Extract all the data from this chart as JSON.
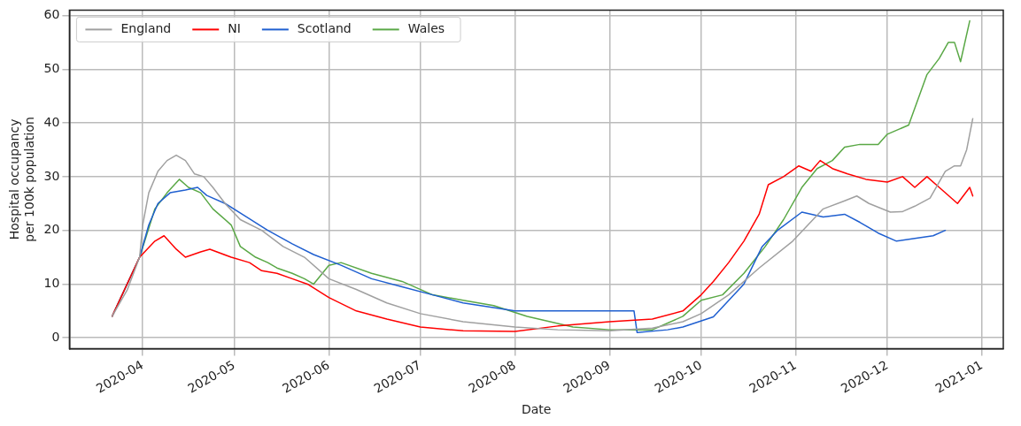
{
  "chart_data": {
    "type": "line",
    "xlabel": "Date",
    "ylabel": "Hospital occupancy\nper 100k population",
    "xlim": [
      "2020-03-08",
      "2021-01-08"
    ],
    "xticks": [
      {
        "value": "2020-04-01",
        "label": "2020-04"
      },
      {
        "value": "2020-05-01",
        "label": "2020-05"
      },
      {
        "value": "2020-06-01",
        "label": "2020-06"
      },
      {
        "value": "2020-07-01",
        "label": "2020-07"
      },
      {
        "value": "2020-08-01",
        "label": "2020-08"
      },
      {
        "value": "2020-09-01",
        "label": "2020-09"
      },
      {
        "value": "2020-10-01",
        "label": "2020-10"
      },
      {
        "value": "2020-11-01",
        "label": "2020-11"
      },
      {
        "value": "2020-12-01",
        "label": "2020-12"
      },
      {
        "value": "2021-01-01",
        "label": "2021-01"
      }
    ],
    "ylim": [
      -2,
      61
    ],
    "yticks": [
      0,
      10,
      20,
      30,
      40,
      50,
      60
    ],
    "grid": true,
    "legend": "top left",
    "marker": "none",
    "line_style": "solid",
    "series": [
      {
        "name": "England",
        "color": "#a0a0a0",
        "x": [
          "2020-03-22",
          "2020-03-27",
          "2020-03-31",
          "2020-04-01",
          "2020-04-03",
          "2020-04-06",
          "2020-04-09",
          "2020-04-12",
          "2020-04-15",
          "2020-04-18",
          "2020-04-21",
          "2020-04-24",
          "2020-04-28",
          "2020-05-03",
          "2020-05-10",
          "2020-05-17",
          "2020-05-24",
          "2020-06-01",
          "2020-06-10",
          "2020-06-20",
          "2020-07-01",
          "2020-07-15",
          "2020-08-01",
          "2020-08-15",
          "2020-09-01",
          "2020-09-15",
          "2020-09-25",
          "2020-10-01",
          "2020-10-10",
          "2020-10-20",
          "2020-10-31",
          "2020-11-05",
          "2020-11-10",
          "2020-11-17",
          "2020-11-21",
          "2020-11-25",
          "2020-12-02",
          "2020-12-06",
          "2020-12-10",
          "2020-12-15",
          "2020-12-20",
          "2020-12-23",
          "2020-12-25",
          "2020-12-27",
          "2020-12-29"
        ],
        "values": [
          4,
          9,
          15,
          21,
          27,
          31,
          33,
          34,
          33,
          30.5,
          30,
          28,
          25,
          22,
          20,
          17,
          15,
          11,
          9,
          6.5,
          4.5,
          3,
          2,
          1.5,
          1.3,
          1.8,
          3,
          4.5,
          8,
          13,
          18,
          21,
          24,
          25.5,
          26.4,
          25,
          23.4,
          23.5,
          24.5,
          26,
          31,
          32,
          32,
          35,
          40.8
        ]
      },
      {
        "name": "NI",
        "color": "#ff0000",
        "x": [
          "2020-03-22",
          "2020-03-31",
          "2020-04-05",
          "2020-04-08",
          "2020-04-12",
          "2020-04-15",
          "2020-04-20",
          "2020-04-23",
          "2020-04-30",
          "2020-05-06",
          "2020-05-10",
          "2020-05-15",
          "2020-05-20",
          "2020-05-25",
          "2020-06-01",
          "2020-06-10",
          "2020-06-20",
          "2020-07-01",
          "2020-07-15",
          "2020-08-01",
          "2020-08-15",
          "2020-09-01",
          "2020-09-15",
          "2020-09-25",
          "2020-10-01",
          "2020-10-05",
          "2020-10-10",
          "2020-10-15",
          "2020-10-20",
          "2020-10-23",
          "2020-10-28",
          "2020-11-02",
          "2020-11-06",
          "2020-11-09",
          "2020-11-13",
          "2020-11-18",
          "2020-11-24",
          "2020-12-01",
          "2020-12-06",
          "2020-12-10",
          "2020-12-14",
          "2020-12-18",
          "2020-12-24",
          "2020-12-28",
          "2020-12-29"
        ],
        "values": [
          4,
          15,
          18,
          19,
          16.5,
          15,
          16,
          16.5,
          15,
          14,
          12.5,
          12,
          11,
          10,
          7.5,
          5,
          3.5,
          2,
          1.3,
          1.2,
          2.2,
          3,
          3.5,
          5,
          8,
          10.5,
          14,
          18,
          23,
          28.5,
          30,
          32,
          31,
          33,
          31.5,
          30.5,
          29.5,
          29,
          30,
          28,
          30,
          28,
          25,
          28,
          26.4
        ]
      },
      {
        "name": "Scotland",
        "color": "#1f5fd0",
        "x": [
          "2020-03-22",
          "2020-03-31",
          "2020-04-03",
          "2020-04-06",
          "2020-04-10",
          "2020-04-15",
          "2020-04-19",
          "2020-04-22",
          "2020-04-28",
          "2020-05-05",
          "2020-05-12",
          "2020-05-20",
          "2020-05-27",
          "2020-06-05",
          "2020-06-15",
          "2020-06-25",
          "2020-07-05",
          "2020-07-15",
          "2020-08-01",
          "2020-08-15",
          "2020-09-01",
          "2020-09-09",
          "2020-09-10",
          "2020-09-20",
          "2020-09-25",
          "2020-10-05",
          "2020-10-15",
          "2020-10-21",
          "2020-10-26",
          "2020-11-03",
          "2020-11-10",
          "2020-11-17",
          "2020-11-22",
          "2020-11-28",
          "2020-12-04",
          "2020-12-10",
          "2020-12-16",
          "2020-12-20"
        ],
        "values": [
          4,
          15,
          21,
          25,
          27,
          27.5,
          28,
          26.5,
          25,
          22.5,
          20,
          17.5,
          15.5,
          13.5,
          11,
          9.5,
          8,
          6.5,
          5,
          5,
          5,
          5,
          1,
          1.5,
          2,
          3.9,
          10,
          17,
          20,
          23.4,
          22.5,
          23,
          21.5,
          19.5,
          18,
          18.5,
          19,
          20
        ]
      },
      {
        "name": "Wales",
        "color": "#5aa846",
        "x": [
          "2020-03-22",
          "2020-03-31",
          "2020-04-05",
          "2020-04-09",
          "2020-04-13",
          "2020-04-16",
          "2020-04-20",
          "2020-04-24",
          "2020-04-30",
          "2020-05-03",
          "2020-05-08",
          "2020-05-12",
          "2020-05-15",
          "2020-05-20",
          "2020-05-24",
          "2020-05-27",
          "2020-06-01",
          "2020-06-05",
          "2020-06-15",
          "2020-06-25",
          "2020-07-05",
          "2020-07-15",
          "2020-07-25",
          "2020-08-05",
          "2020-08-20",
          "2020-09-01",
          "2020-09-15",
          "2020-09-25",
          "2020-10-01",
          "2020-10-08",
          "2020-10-15",
          "2020-10-22",
          "2020-10-28",
          "2020-11-03",
          "2020-11-08",
          "2020-11-13",
          "2020-11-17",
          "2020-11-22",
          "2020-11-28",
          "2020-12-01",
          "2020-12-08",
          "2020-12-14",
          "2020-12-18",
          "2020-12-21",
          "2020-12-23",
          "2020-12-25",
          "2020-12-28"
        ],
        "values": [
          4,
          15,
          24,
          27,
          29.5,
          28,
          27,
          24,
          21,
          17,
          15,
          14,
          13,
          12,
          11,
          10,
          13.5,
          14,
          12,
          10.5,
          8,
          7,
          6,
          4,
          2,
          1.5,
          1.5,
          4,
          7,
          8,
          12,
          17,
          22,
          28,
          31.5,
          33,
          35.5,
          36,
          36,
          37.9,
          39.6,
          49,
          52,
          55,
          55,
          51.4,
          59
        ]
      }
    ]
  }
}
